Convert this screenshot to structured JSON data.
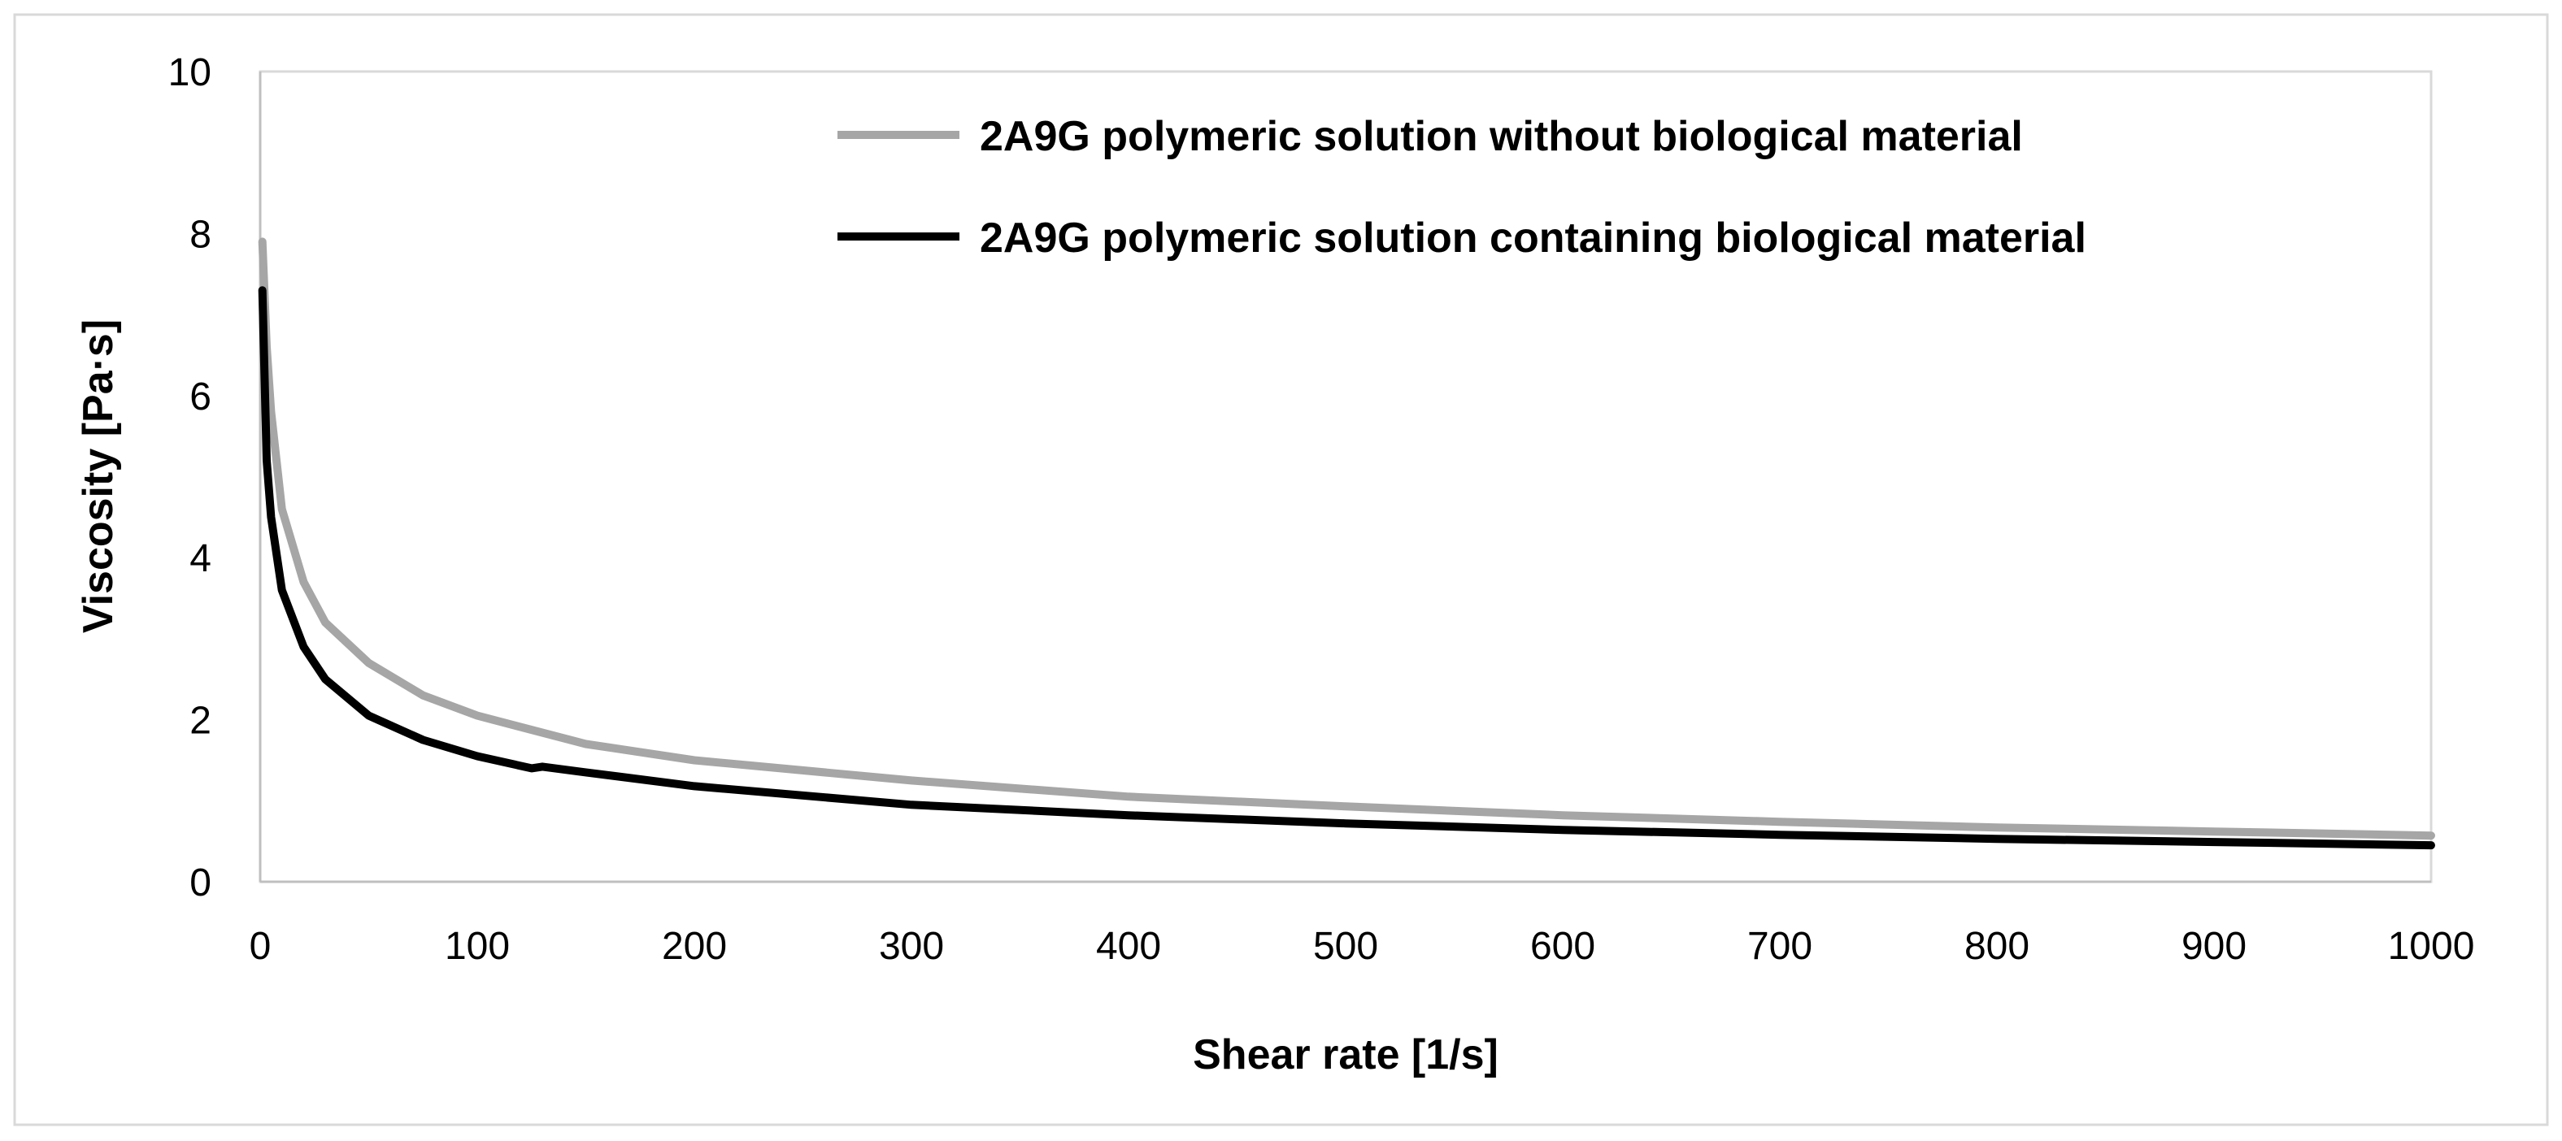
{
  "chart_data": {
    "type": "line",
    "title": "",
    "xlabel": "Shear rate [1/s]",
    "ylabel": "Viscosity [Pa·s]",
    "xlim": [
      0,
      1000
    ],
    "ylim": [
      0,
      10
    ],
    "xticks": [
      0,
      100,
      200,
      300,
      400,
      500,
      600,
      700,
      800,
      900,
      1000
    ],
    "yticks": [
      0,
      2,
      4,
      6,
      8,
      10
    ],
    "grid": false,
    "legend_position": "top-right",
    "series": [
      {
        "name": "2A9G polymeric solution without biological material",
        "color": "#a6a6a6",
        "x": [
          1,
          3,
          5,
          10,
          20,
          30,
          50,
          75,
          100,
          150,
          200,
          300,
          400,
          500,
          600,
          700,
          800,
          900,
          1000
        ],
        "y": [
          7.9,
          6.6,
          5.8,
          4.6,
          3.7,
          3.2,
          2.7,
          2.3,
          2.05,
          1.7,
          1.5,
          1.25,
          1.05,
          0.93,
          0.82,
          0.74,
          0.67,
          0.62,
          0.57
        ]
      },
      {
        "name": "2A9G polymeric solution containing biological material",
        "color": "#000000",
        "x": [
          1,
          3,
          5,
          10,
          20,
          30,
          50,
          75,
          100,
          125,
          130,
          150,
          200,
          300,
          400,
          500,
          600,
          700,
          800,
          900,
          1000
        ],
        "y": [
          7.3,
          5.2,
          4.5,
          3.6,
          2.9,
          2.5,
          2.05,
          1.75,
          1.55,
          1.4,
          1.42,
          1.35,
          1.18,
          0.95,
          0.82,
          0.72,
          0.64,
          0.58,
          0.53,
          0.49,
          0.45
        ]
      }
    ]
  }
}
